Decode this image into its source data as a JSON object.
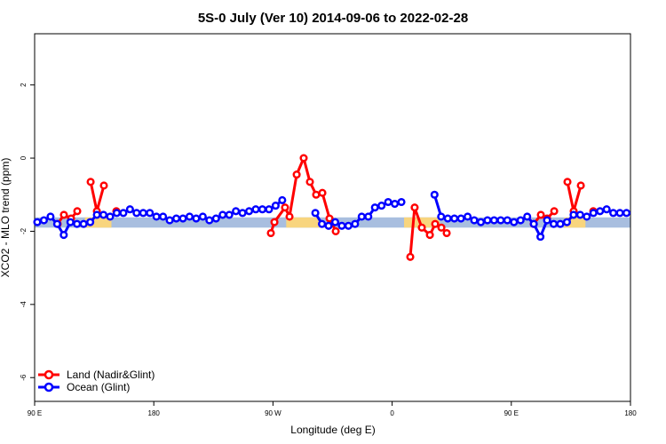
{
  "chart_data": {
    "type": "line",
    "title": "5S-0 July (Ver 10)   2014-09-06 to 2022-02-28",
    "x_label": "Longitude (deg E)",
    "y_label": "XCO2 - MLO trend (ppm)",
    "xlim": [
      90,
      540
    ],
    "xticks": [
      {
        "value": 90,
        "label": "90 E"
      },
      180,
      {
        "value": 270,
        "label": "90 W"
      },
      {
        "value": 360,
        "label": "0"
      },
      {
        "value": 450,
        "label": "90 E"
      },
      {
        "value": 540,
        "label": "180"
      }
    ],
    "ylim": [
      -6.65,
      3.4
    ],
    "yticks": [
      -6,
      -4,
      -2,
      0,
      2
    ],
    "band": [
      -1.9,
      -1.62
    ],
    "band_color": "#a8bedf",
    "band_highlights": [
      [
        128,
        148
      ],
      [
        280,
        305
      ],
      [
        369,
        396
      ],
      [
        490,
        506
      ]
    ],
    "band_highlight_color": "#f8d57e",
    "legend": "bottom-left",
    "series": [
      {
        "name": "Land (Nadir&Glint)",
        "color": "#ff0000",
        "x": [
          107.4,
          112.1,
          117.5,
          122.2,
          null,
          132.3,
          137,
          142.3,
          null,
          151.7,
          null,
          268.4,
          271.1,
          279.1,
          282.5,
          287.9,
          293.2,
          297.9,
          302.6,
          307.3,
          312.7,
          317.4,
          null,
          373.7,
          377,
          382.4,
          388.5,
          392.5,
          397.2,
          401.2,
          null,
          466.9,
          472.3,
          477,
          482.4,
          null,
          492.4,
          497.1,
          502.5,
          null,
          511.9
        ],
        "values": [
          -1.8,
          -1.55,
          -1.65,
          -1.45,
          null,
          -0.65,
          -1.45,
          -0.75,
          null,
          -1.45,
          null,
          -2.05,
          -1.75,
          -1.35,
          -1.6,
          -0.45,
          0,
          -0.65,
          -1.0,
          -0.95,
          -1.65,
          -2.0,
          null,
          -2.7,
          -1.35,
          -1.9,
          -2.1,
          -1.8,
          -1.9,
          -2.05,
          null,
          -1.8,
          -1.55,
          -1.65,
          -1.45,
          null,
          -0.65,
          -1.45,
          -0.75,
          null,
          -1.45
        ]
      },
      {
        "name": "Ocean (Glint)",
        "color": "#0000ff",
        "x": [
          92,
          97,
          102,
          107,
          112,
          117,
          122,
          127,
          132,
          137,
          142,
          147,
          152,
          157,
          162,
          167,
          172,
          177,
          182,
          187,
          192,
          197,
          202,
          207,
          212,
          217,
          222,
          227,
          232,
          237,
          242,
          247,
          252,
          257,
          262,
          267,
          272,
          277,
          282,
          287,
          292,
          297,
          302,
          307,
          312,
          317,
          322,
          327,
          332,
          337,
          342,
          347,
          352,
          357,
          362,
          367,
          372,
          377,
          382,
          387,
          392,
          397,
          402,
          407,
          412,
          417,
          422,
          427,
          432,
          437,
          442,
          447,
          452,
          457,
          462,
          467,
          472,
          477,
          482,
          487,
          492,
          497,
          502,
          507,
          512,
          517,
          522,
          527,
          532,
          537
        ],
        "values": [
          -1.75,
          -1.7,
          -1.6,
          -1.8,
          -2.1,
          -1.75,
          -1.8,
          -1.8,
          -1.75,
          -1.55,
          -1.55,
          -1.6,
          -1.5,
          -1.5,
          -1.4,
          -1.5,
          -1.5,
          -1.5,
          -1.6,
          -1.6,
          -1.7,
          -1.65,
          -1.65,
          -1.6,
          -1.65,
          -1.6,
          -1.7,
          -1.65,
          -1.55,
          -1.55,
          -1.45,
          -1.5,
          -1.45,
          -1.4,
          -1.4,
          -1.4,
          -1.3,
          -1.15,
          null,
          null,
          null,
          null,
          -1.5,
          -1.8,
          -1.85,
          -1.75,
          -1.85,
          -1.85,
          -1.8,
          -1.6,
          -1.6,
          -1.35,
          -1.3,
          -1.2,
          -1.25,
          -1.2,
          null,
          null,
          null,
          null,
          -1.0,
          -1.6,
          -1.65,
          -1.65,
          -1.65,
          -1.6,
          -1.7,
          -1.75,
          -1.7,
          -1.7,
          -1.7,
          -1.7,
          -1.75,
          -1.7,
          -1.6,
          -1.8,
          -2.15,
          -1.7,
          -1.8,
          -1.8,
          -1.75,
          -1.55,
          -1.55,
          -1.6,
          -1.5,
          -1.45,
          -1.4,
          -1.5,
          -1.5,
          -1.5
        ]
      }
    ]
  }
}
